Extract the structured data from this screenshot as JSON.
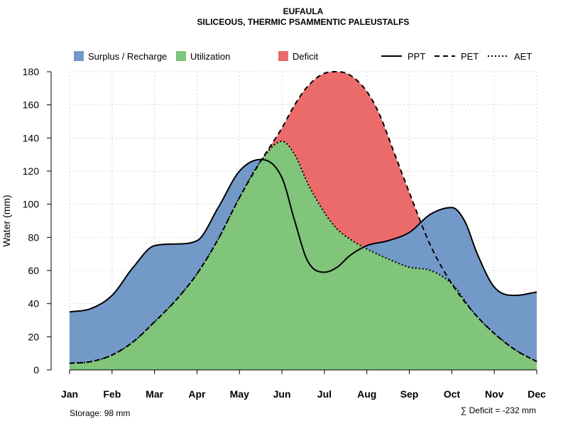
{
  "chart_data": {
    "type": "area",
    "title": "EUFAULA",
    "subtitle": "SILICEOUS, THERMIC PSAMMENTIC PALEUSTALFS",
    "xlabel": "",
    "ylabel": "Water (mm)",
    "ylim": [
      0,
      180
    ],
    "yticks": [
      "0",
      "20",
      "40",
      "60",
      "80",
      "100",
      "120",
      "140",
      "160",
      "180"
    ],
    "categories": [
      "Jan",
      "Feb",
      "Mar",
      "Apr",
      "May",
      "Jun",
      "Jul",
      "Aug",
      "Sep",
      "Oct",
      "Nov",
      "Dec"
    ],
    "grid": true,
    "series": [
      {
        "name": "PPT",
        "style": "solid",
        "x": [
          1,
          1.5,
          2,
          2.5,
          3,
          3.5,
          4,
          4.5,
          5,
          5.5,
          6,
          6.3,
          6.6,
          7,
          7.3,
          7.6,
          8,
          8.5,
          9,
          9.5,
          10,
          10.3,
          10.6,
          11,
          11.5,
          12
        ],
        "values": [
          35,
          37,
          45,
          62,
          75,
          76,
          78,
          98,
          120,
          127,
          116,
          90,
          66,
          59,
          62,
          69,
          75,
          78,
          83,
          94,
          98,
          90,
          70,
          50,
          45,
          47
        ]
      },
      {
        "name": "PET",
        "style": "dashed",
        "x": [
          1,
          1.5,
          2,
          2.5,
          3,
          3.5,
          4,
          4.5,
          5,
          5.5,
          6,
          6.3,
          6.6,
          7,
          7.3,
          7.6,
          8,
          8.3,
          8.6,
          9,
          9.5,
          10,
          10.5,
          11,
          11.5,
          12
        ],
        "values": [
          4,
          5,
          9,
          17,
          29,
          42,
          58,
          79,
          104,
          126,
          146,
          160,
          171,
          179,
          180,
          178,
          168,
          154,
          134,
          107,
          75,
          52,
          35,
          22,
          12,
          5
        ]
      },
      {
        "name": "AET",
        "style": "dotted",
        "x": [
          1,
          1.5,
          2,
          2.5,
          3,
          3.5,
          4,
          4.5,
          5,
          5.5,
          6,
          6.3,
          6.6,
          7,
          7.3,
          7.6,
          8,
          8.5,
          9,
          9.5,
          10,
          10.5,
          11,
          11.5,
          12
        ],
        "values": [
          4,
          5,
          9,
          17,
          29,
          42,
          58,
          79,
          104,
          126,
          138,
          130,
          113,
          95,
          85,
          79,
          73,
          67,
          62,
          60,
          52,
          35,
          22,
          12,
          5
        ]
      }
    ],
    "legend": [
      {
        "label": "Surplus / Recharge",
        "color": "#7399c9"
      },
      {
        "label": "Utilization",
        "color": "#80c57a"
      },
      {
        "label": "Deficit",
        "color": "#eb6b6b"
      },
      {
        "label": "PPT",
        "line": "solid"
      },
      {
        "label": "PET",
        "line": "dashed"
      },
      {
        "label": "AET",
        "line": "dotted"
      }
    ],
    "legend_position": "top",
    "fills": {
      "surplus": "#7399c9",
      "utilization": "#80c57a",
      "deficit": "#eb6b6b"
    },
    "storage_note": "Storage: 98 mm",
    "deficit_note": "∑ Deficit = -232 mm"
  }
}
